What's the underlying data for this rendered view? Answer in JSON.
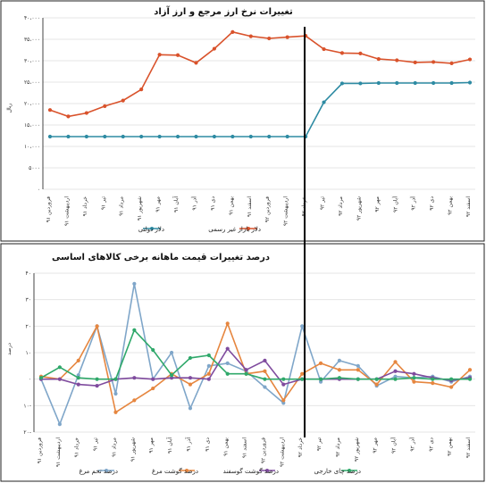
{
  "chart_data": [
    {
      "type": "line",
      "title": "تغییرات نرخ ارز مرجع و ارز آزاد",
      "ylabel": "ریال",
      "ylim": [
        0,
        40000
      ],
      "yticks": [
        "۰",
        "۵۰۰۰",
        "۱۰،۰۰۰",
        "۱۵،۰۰۰",
        "۲۰،۰۰۰",
        "۲۵،۰۰۰",
        "۳۰،۰۰۰",
        "۳۵،۰۰۰",
        "۴۰،۰۰۰"
      ],
      "ytick_values": [
        0,
        5000,
        10000,
        15000,
        20000,
        25000,
        30000,
        35000,
        40000
      ],
      "categories": [
        "فروردین ۹۱",
        "اردیبهشت ۹۱",
        "خرداد ۹۱",
        "تیر ۹۱",
        "مرداد ۹۱",
        "شهریور ۹۱",
        "مهر ۹۱",
        "آبان ۹۱",
        "آذر ۹۱",
        "دی ۹۱",
        "بهمن ۹۱",
        "اسفند ۹۱",
        "فروردین ۹۲",
        "اردیبهشت ۹۲",
        "خرداد ۹۲",
        "تیر ۹۲",
        "مرداد ۹۲",
        "شهریور ۹۲",
        "مهر ۹۲",
        "آبان ۹۲",
        "آذر ۹۲",
        "دی ۹۲",
        "بهمن ۹۲",
        "اسفند ۹۲"
      ],
      "series": [
        {
          "name": "دلار دولتی",
          "color": "#2e8ba3",
          "values": [
            12300,
            12300,
            12300,
            12300,
            12300,
            12300,
            12300,
            12300,
            12300,
            12300,
            12300,
            12300,
            12300,
            12300,
            12300,
            20300,
            24700,
            24700,
            24800,
            24800,
            24800,
            24800,
            24800,
            24900
          ]
        },
        {
          "name": "دلار بازار غیر رسمی",
          "color": "#d9522b",
          "values": [
            18500,
            17000,
            17800,
            19400,
            20700,
            23300,
            31400,
            31300,
            29500,
            32800,
            36700,
            35700,
            35200,
            35500,
            35800,
            32700,
            31800,
            31700,
            30400,
            30100,
            29600,
            29700,
            29400,
            30300
          ]
        }
      ],
      "divider_after_index": 14,
      "legend_position": "bottom"
    },
    {
      "type": "line",
      "title": "درصد تغییرات قیمت ماهانه برخی کالاهای اساسی",
      "ylabel": "درصد",
      "ylim": [
        -20,
        40
      ],
      "yticks": [
        "۲۰-",
        "۱۰-",
        "۰",
        "۱۰",
        "۲۰",
        "۳۰",
        "۴۰"
      ],
      "ytick_values": [
        -20,
        -10,
        0,
        10,
        20,
        30,
        40
      ],
      "categories": [
        "فروردین ۹۱",
        "اردیبهشت ۹۱",
        "خرداد ۹۱",
        "تیر ۹۱",
        "مرداد ۹۱",
        "شهریور ۹۱",
        "مهر ۹۱",
        "آبان ۹۱",
        "آذر ۹۱",
        "دی ۹۱",
        "بهمن ۹۱",
        "اسفند ۹۱",
        "فروردین ۹۲",
        "اردیبهشت ۹۲",
        "خرداد ۹۲",
        "تیر ۹۲",
        "مرداد ۹۲",
        "شهریور ۹۲",
        "مهر ۹۲",
        "آبان ۹۲",
        "آذر ۹۲",
        "دی ۹۲",
        "بهمن ۹۲",
        "اسفند ۹۲"
      ],
      "series": [
        {
          "name": "درصد تخم مرغ",
          "color": "#7fa6c9",
          "values": [
            0,
            -17,
            1.5,
            20,
            -5.5,
            36,
            0,
            10,
            -11,
            5,
            6,
            3,
            -3,
            -9,
            20,
            -1,
            7,
            5,
            -2.5,
            1,
            0.5,
            1,
            -1,
            1
          ]
        },
        {
          "name": "درصد گوشت مرغ",
          "color": "#e6863f",
          "values": [
            1,
            0,
            7,
            20,
            -12.5,
            -8,
            -3.5,
            2,
            -2,
            2,
            21,
            2,
            3,
            -8,
            2,
            6,
            3.5,
            3.5,
            -2,
            6.5,
            -1,
            -1.5,
            -3,
            3.5
          ]
        },
        {
          "name": "درصد گوشت گوسفند",
          "color": "#7f4b9e",
          "values": [
            0,
            0,
            -2,
            -2.5,
            0,
            0.5,
            0,
            0.5,
            0.5,
            0,
            11.5,
            3.5,
            7,
            -2,
            0,
            0,
            0,
            0,
            0,
            3,
            2,
            0.5,
            -0.5,
            0.5
          ]
        },
        {
          "name": "درصد چای خارجی",
          "color": "#2fa86a",
          "values": [
            0.5,
            4.5,
            0.5,
            0,
            0,
            18.5,
            11,
            1.5,
            8,
            9,
            2,
            2,
            0,
            0,
            0,
            0,
            0.5,
            0,
            0,
            0,
            0.5,
            0,
            0,
            0
          ]
        }
      ],
      "divider_after_index": 14,
      "legend_position": "bottom"
    }
  ]
}
